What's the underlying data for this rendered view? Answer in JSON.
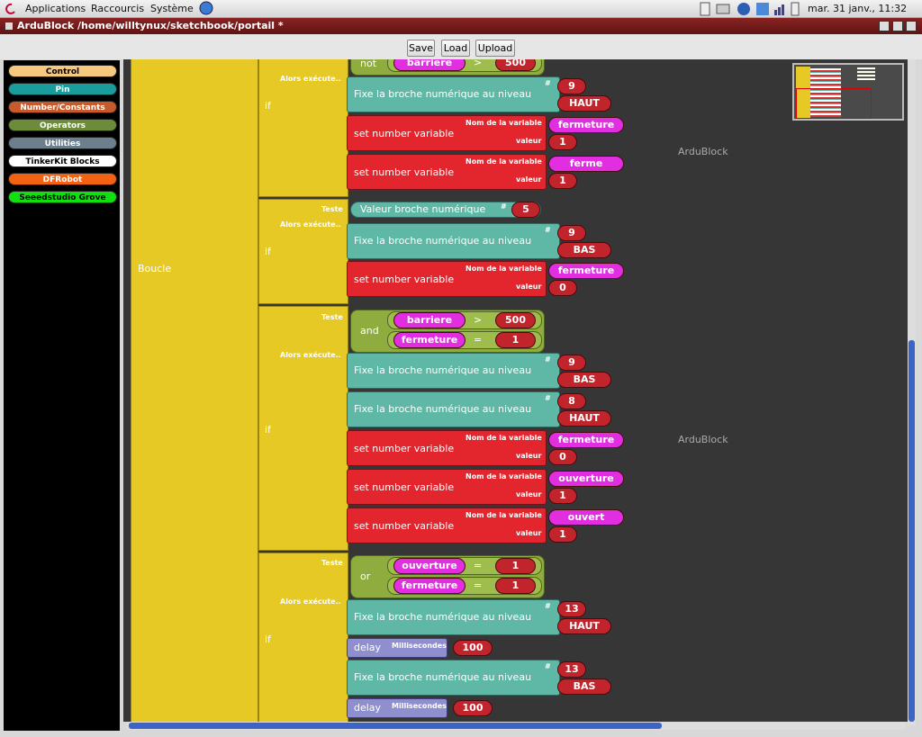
{
  "top_panel": {
    "menus": [
      "Applications",
      "Raccourcis",
      "Système"
    ],
    "clock": "mar. 31 janv., 11:32"
  },
  "window": {
    "title": "ArduBlock /home/willtynux/sketchbook/portail *"
  },
  "toolbar": {
    "buttons": [
      "Save",
      "Load",
      "Upload"
    ]
  },
  "palette": {
    "categories": [
      "Control",
      "Pin",
      "Number/Constants",
      "Operators",
      "Utilities",
      "TinkerKit Blocks",
      "DFRobot",
      "Seeedstudio Grove"
    ]
  },
  "canvas": {
    "watermarks": [
      "ArduBlock",
      "ArduBlock"
    ],
    "loop_label": "Boucle",
    "if_blocks": [
      {
        "label": "if",
        "then_label": "Alors exécute..",
        "test": {
          "op": "not",
          "conditions": [
            {
              "variable": "barriere",
              "comparator": ">",
              "value": 500
            }
          ]
        },
        "actions": [
          {
            "label": "Fixe la broche numérique au niveau",
            "hash": "#",
            "pin": 9,
            "level": "HAUT"
          },
          {
            "label": "set number variable",
            "name_label": "Nom de la variable",
            "name": "fermeture",
            "value_label": "valeur",
            "value": 1
          },
          {
            "label": "set number variable",
            "name_label": "Nom de la variable",
            "name": "ferme",
            "value_label": "valeur",
            "value": 1
          }
        ]
      },
      {
        "label": "if",
        "then_label": "Alors exécute..",
        "test_label": "Teste",
        "test": {
          "label": "Valeur broche numérique",
          "hash": "#",
          "pin": 5
        },
        "actions": [
          {
            "label": "Fixe la broche numérique au niveau",
            "hash": "#",
            "pin": 9,
            "level": "BAS"
          },
          {
            "label": "set number variable",
            "name_label": "Nom de la variable",
            "name": "fermeture",
            "value_label": "valeur",
            "value": 0
          }
        ]
      },
      {
        "label": "if",
        "then_label": "Alors exécute..",
        "test_label": "Teste",
        "test": {
          "op": "and",
          "conditions": [
            {
              "variable": "barriere",
              "comparator": ">",
              "value": 500
            },
            {
              "variable": "fermeture",
              "comparator": "=",
              "value": 1
            }
          ]
        },
        "actions": [
          {
            "label": "Fixe la broche numérique au niveau",
            "hash": "#",
            "pin": 9,
            "level": "BAS"
          },
          {
            "label": "Fixe la broche numérique au niveau",
            "hash": "#",
            "pin": 8,
            "level": "HAUT"
          },
          {
            "label": "set number variable",
            "name_label": "Nom de la variable",
            "name": "fermeture",
            "value_label": "valeur",
            "value": 0
          },
          {
            "label": "set number variable",
            "name_label": "Nom de la variable",
            "name": "ouverture",
            "value_label": "valeur",
            "value": 1
          },
          {
            "label": "set number variable",
            "name_label": "Nom de la variable",
            "name": "ouvert",
            "value_label": "valeur",
            "value": 1
          }
        ]
      },
      {
        "label": "if",
        "then_label": "Alors exécute..",
        "test_label": "Teste",
        "test": {
          "op": "or",
          "conditions": [
            {
              "variable": "ouverture",
              "comparator": "=",
              "value": 1
            },
            {
              "variable": "fermeture",
              "comparator": "=",
              "value": 1
            }
          ]
        },
        "actions": [
          {
            "label": "Fixe la broche numérique au niveau",
            "hash": "#",
            "pin": 13,
            "level": "HAUT"
          },
          {
            "label": "delay",
            "unit_label": "Millisecondes",
            "value": 100
          },
          {
            "label": "Fixe la broche numérique au niveau",
            "hash": "#",
            "pin": 13,
            "level": "BAS"
          },
          {
            "label": "delay",
            "unit_label": "Millisecondes",
            "value": 100
          }
        ]
      }
    ]
  }
}
